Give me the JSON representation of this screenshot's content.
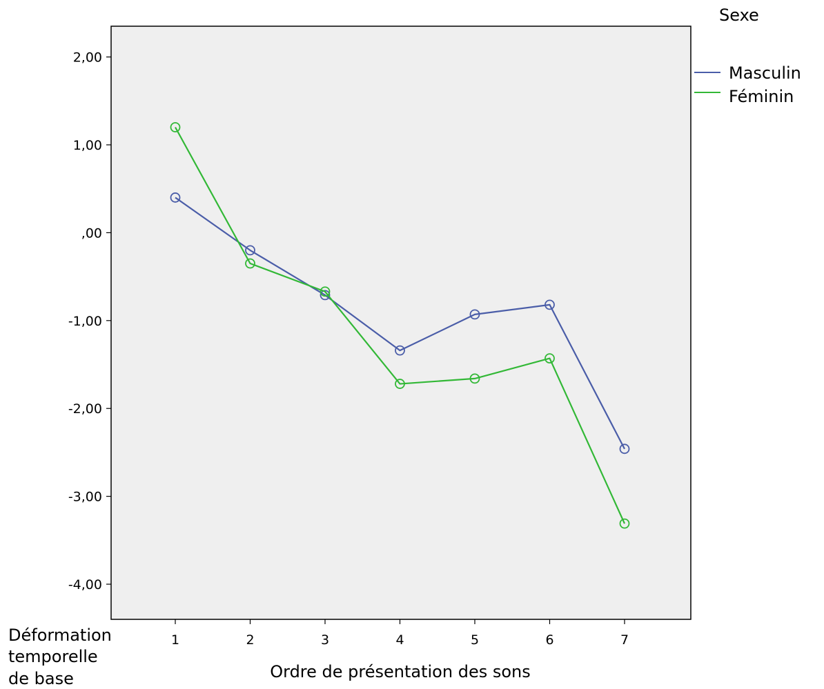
{
  "chart_data": {
    "type": "line",
    "x": [
      1,
      2,
      3,
      4,
      5,
      6,
      7
    ],
    "xlabel": "Ordre de présentation des sons",
    "ylabel": [
      "Déformation",
      "temporelle",
      "de base"
    ],
    "ylim": [
      -4.4,
      2.35
    ],
    "y_ticks": [
      2,
      1,
      0,
      -1,
      -2,
      -3,
      -4
    ],
    "y_tick_labels": [
      "2,00",
      "1,00",
      ",00",
      "-1,00",
      "-2,00",
      "-3,00",
      "-4,00"
    ],
    "x_tick_labels": [
      "1",
      "2",
      "3",
      "4",
      "5",
      "6",
      "7"
    ],
    "grid": false,
    "plot_background": "#EFEFEF",
    "legend": {
      "title": "Sexe",
      "placement": "top-right outside"
    },
    "series": [
      {
        "name": "Masculin",
        "color": "#4A5DA8",
        "values": [
          0.4,
          -0.2,
          -0.71,
          -1.34,
          -0.93,
          -0.82,
          -2.46
        ]
      },
      {
        "name": "Féminin",
        "color": "#32B836",
        "values": [
          1.2,
          -0.35,
          -0.67,
          -1.72,
          -1.66,
          -1.43,
          -3.31
        ]
      }
    ]
  }
}
